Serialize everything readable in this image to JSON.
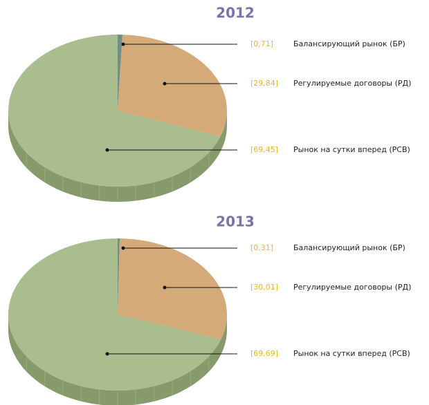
{
  "chart_data": [
    {
      "type": "pie",
      "title": "2012",
      "categories": [
        "Балансирующий рынок (БР)",
        "Регулируемые договоры (РД)",
        "Рынок на сутки вперед (РСВ)"
      ],
      "values": [
        0.71,
        29.84,
        69.45
      ],
      "value_labels": [
        "[0,71]",
        "[29,84]",
        "[69,45]"
      ],
      "colors": [
        "#6f9184",
        "#d4aa78",
        "#a9bd8f"
      ]
    },
    {
      "type": "pie",
      "title": "2013",
      "categories": [
        "Балансирующий рынок (БР)",
        "Регулируемые договоры (РД)",
        "Рынок на сутки вперед (РСВ)"
      ],
      "values": [
        0.31,
        30.01,
        69.69
      ],
      "value_labels": [
        "[0,31]",
        "[30,01]",
        "[69,69]"
      ],
      "colors": [
        "#6f9184",
        "#d4aa78",
        "#a9bd8f"
      ]
    }
  ]
}
